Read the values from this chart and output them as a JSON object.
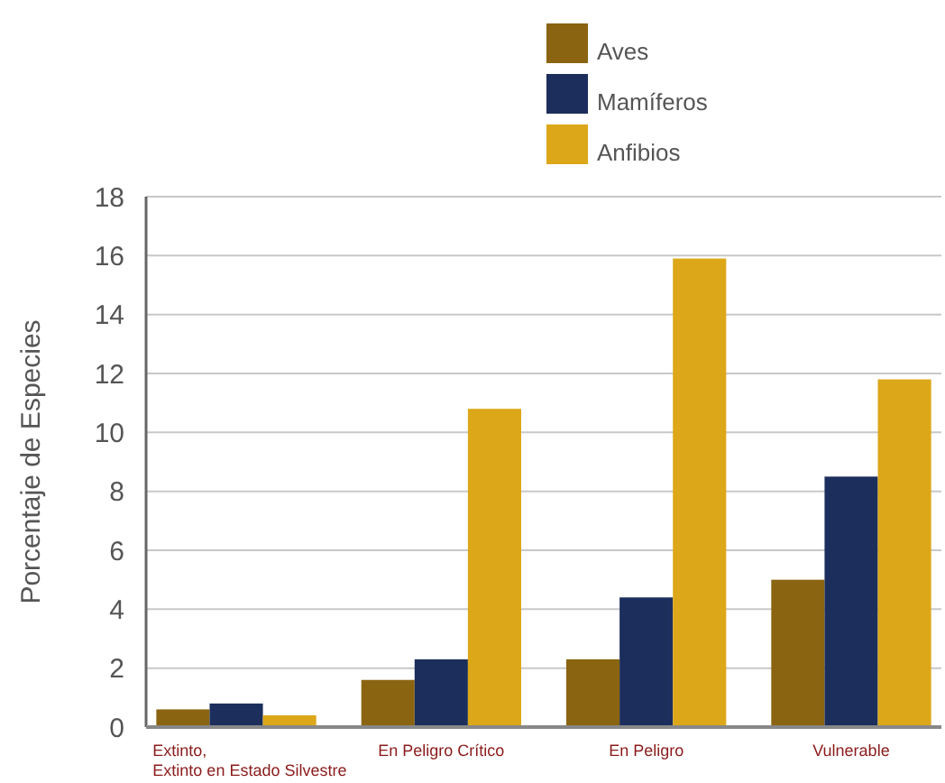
{
  "chart_data": {
    "type": "bar",
    "ylabel": "Porcentaje de Especies",
    "categories": [
      "Extinto,\nExtinto en Estado Silvestre",
      "En Peligro Crítico",
      "En Peligro",
      "Vulnerable"
    ],
    "series": [
      {
        "name": "Aves",
        "color": "#8a6410",
        "values": [
          0.6,
          1.6,
          2.3,
          5.0
        ]
      },
      {
        "name": "Mamíferos",
        "color": "#1c2e5c",
        "values": [
          0.8,
          2.3,
          4.4,
          8.5
        ]
      },
      {
        "name": "Anfibios",
        "color": "#dca718",
        "values": [
          0.4,
          10.8,
          15.9,
          11.8
        ]
      }
    ],
    "ylim": [
      0,
      18
    ],
    "yticks": [
      0,
      2,
      4,
      6,
      8,
      10,
      12,
      14,
      16,
      18
    ],
    "grid": "y",
    "legend": "top"
  }
}
